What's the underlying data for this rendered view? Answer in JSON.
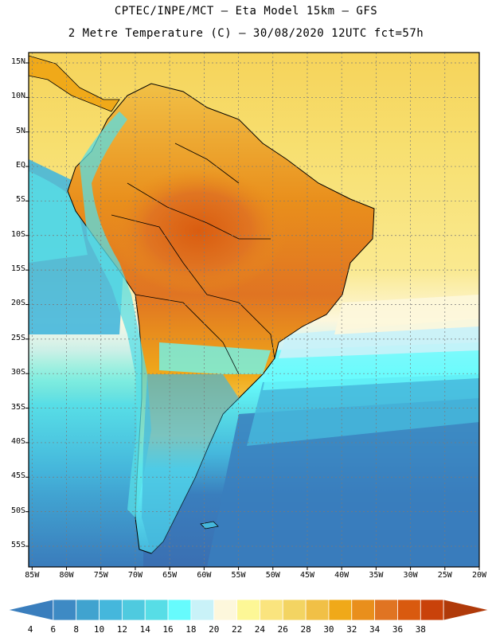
{
  "header": {
    "line1": "CPTEC/INPE/MCT –  Eta Model 15km – GFS",
    "line2": "2 Metre Temperature (C) – 30/08/2020 12UTC fct=57h"
  },
  "axes": {
    "lat_labels": [
      "15N",
      "10N",
      "5N",
      "EQ",
      "5S",
      "10S",
      "15S",
      "20S",
      "25S",
      "30S",
      "35S",
      "40S",
      "45S",
      "50S",
      "55S"
    ],
    "lon_labels": [
      "85W",
      "80W",
      "75W",
      "70W",
      "65W",
      "60W",
      "55W",
      "50W",
      "45W",
      "40W",
      "35W",
      "30W",
      "25W",
      "20W"
    ],
    "lat_range": [
      -58,
      16.5
    ],
    "lon_range": [
      -85.5,
      -20
    ]
  },
  "colorbar": {
    "labels": [
      "4",
      "6",
      "8",
      "10",
      "12",
      "14",
      "16",
      "18",
      "20",
      "22",
      "24",
      "26",
      "28",
      "30",
      "32",
      "34",
      "36",
      "38"
    ],
    "colors": [
      "#3a7ebd",
      "#3e8ac4",
      "#40a3cf",
      "#45b7dc",
      "#4fcadf",
      "#57dde6",
      "#66fbfd",
      "#c9f2f8",
      "#fdf7dc",
      "#fdf796",
      "#fae47e",
      "#f3d462",
      "#f1c046",
      "#f0a919",
      "#e98f1c",
      "#e07422",
      "#d95a0f",
      "#c9420a",
      "#b03a0a"
    ]
  },
  "chart_data": {
    "type": "heatmap",
    "title": "2 Metre Temperature (C)",
    "model": "Eta Model 15km – GFS",
    "valid": "30/08/2020 12UTC fct=57h",
    "units": "C",
    "region": "South America",
    "colorbar_levels": [
      4,
      6,
      8,
      10,
      12,
      14,
      16,
      18,
      20,
      22,
      24,
      26,
      28,
      30,
      32,
      34,
      36,
      38
    ]
  }
}
